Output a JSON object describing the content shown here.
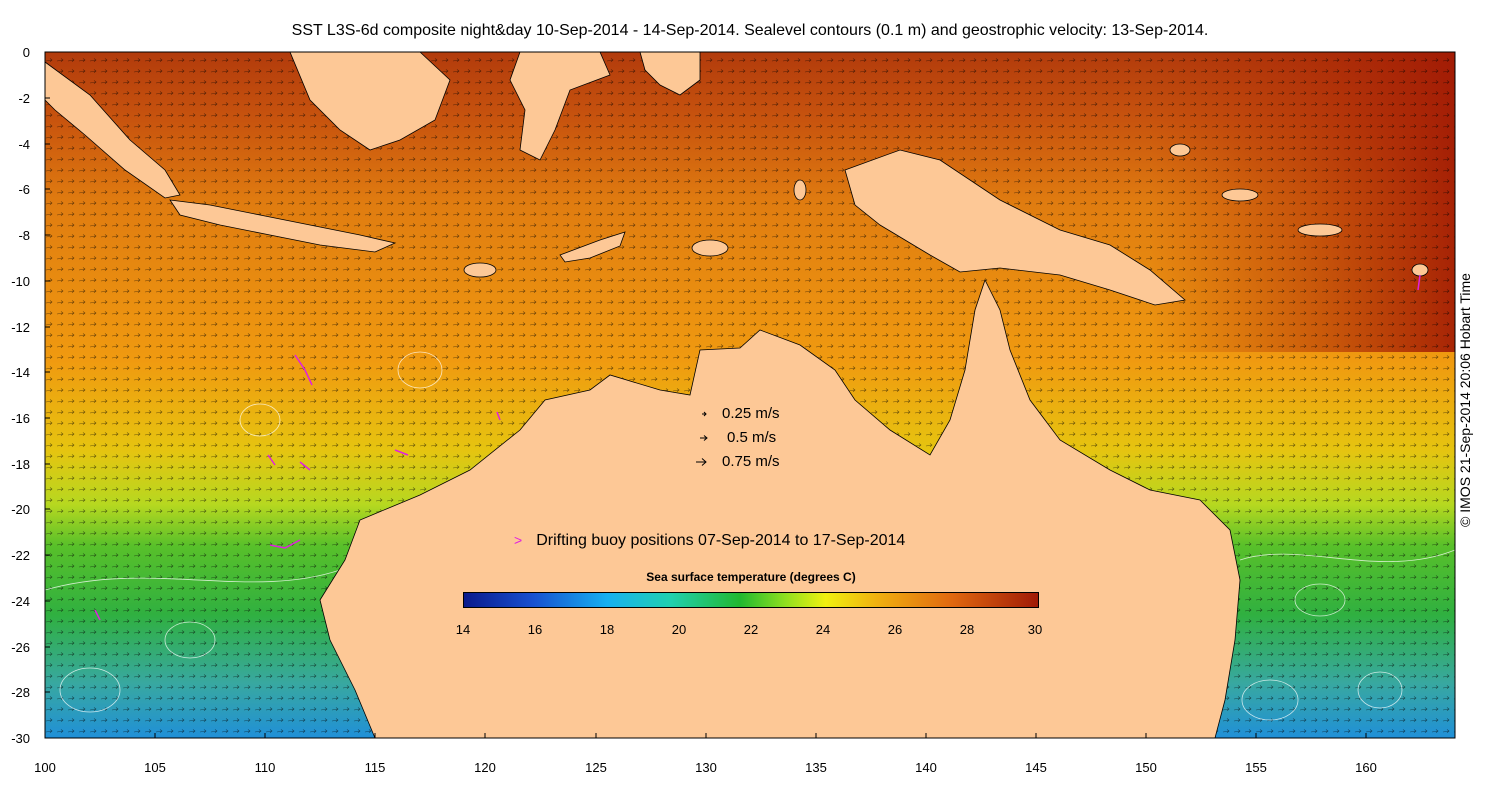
{
  "title": "SST L3S-6d composite night&day 10-Sep-2014 - 14-Sep-2014. Sealevel contours (0.1 m) and geostrophic velocity: 13-Sep-2014.",
  "credit": "© IMOS 21-Sep-2014 20:06 Hobart Time",
  "y_ticks": [
    "0",
    "-2",
    "-4",
    "-6",
    "-8",
    "-10",
    "-12",
    "-14",
    "-16",
    "-18",
    "-20",
    "-22",
    "-24",
    "-26",
    "-28",
    "-30"
  ],
  "x_ticks": [
    "100",
    "105",
    "110",
    "115",
    "120",
    "125",
    "130",
    "135",
    "140",
    "145",
    "150",
    "155",
    "160"
  ],
  "velocity_legend": [
    "0.25 m/s",
    "0.5 m/s",
    "0.75 m/s"
  ],
  "buoy_legend": "Drifting buoy positions 07-Sep-2014 to 17-Sep-2014",
  "colorbar": {
    "title": "Sea surface temperature (degrees C)",
    "ticks": [
      "14",
      "16",
      "18",
      "20",
      "22",
      "24",
      "26",
      "28",
      "30"
    ],
    "range": [
      14,
      30
    ]
  },
  "colors": {
    "land": "#fdc896",
    "buoy": "#e020e0",
    "contour": "#ffffff"
  }
}
